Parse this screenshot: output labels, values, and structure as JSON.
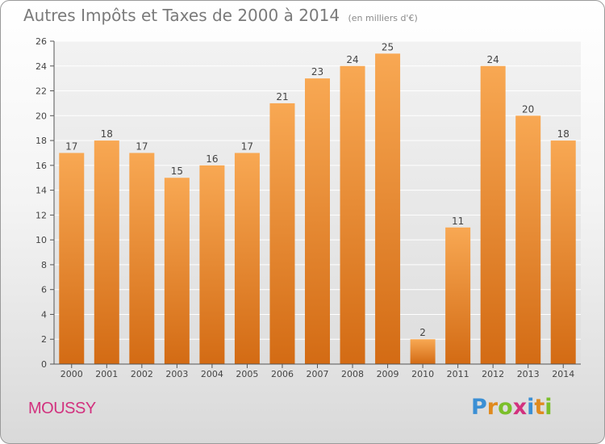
{
  "title": "Autres Impôts et Taxes de 2000 à 2014",
  "units": "(en milliers d'€)",
  "commune": "MOUSSY",
  "logo": {
    "text": "Proxiti",
    "letters": [
      {
        "ch": "P",
        "color": "#3b8fd4"
      },
      {
        "ch": "r",
        "color": "#e08a1e"
      },
      {
        "ch": "o",
        "color": "#7bbf2a"
      },
      {
        "ch": "x",
        "color": "#d2317e"
      },
      {
        "ch": "i",
        "color": "#3b8fd4"
      },
      {
        "ch": "t",
        "color": "#e08a1e"
      },
      {
        "ch": "i",
        "color": "#7bbf2a"
      }
    ]
  },
  "colors": {
    "bar_top": "#f8a853",
    "bar_bottom": "#d36b14",
    "grid": "#ffffff",
    "axis": "#555555",
    "tick_text": "#444444",
    "title": "#7a7a7a",
    "commune": "#d2317e"
  },
  "chart_data": {
    "type": "bar",
    "title": "Autres Impôts et Taxes de 2000 à 2014",
    "subtitle": "(en milliers d'€)",
    "categories": [
      "2000",
      "2001",
      "2002",
      "2003",
      "2004",
      "2005",
      "2006",
      "2007",
      "2008",
      "2009",
      "2010",
      "2011",
      "2012",
      "2013",
      "2014"
    ],
    "values": [
      17,
      18,
      17,
      15,
      16,
      17,
      21,
      23,
      24,
      25,
      2,
      11,
      24,
      20,
      18
    ],
    "data_labels": [
      "17",
      "18",
      "17",
      "15",
      "16",
      "17",
      "21",
      "23",
      "24",
      "25",
      "2",
      "11",
      "24",
      "20",
      "18"
    ],
    "yticks": [
      0,
      2,
      4,
      6,
      8,
      10,
      12,
      14,
      16,
      18,
      20,
      22,
      24,
      26
    ],
    "ylim": [
      0,
      26
    ],
    "xlabel": "",
    "ylabel": "",
    "grid": true,
    "legend": "none"
  }
}
